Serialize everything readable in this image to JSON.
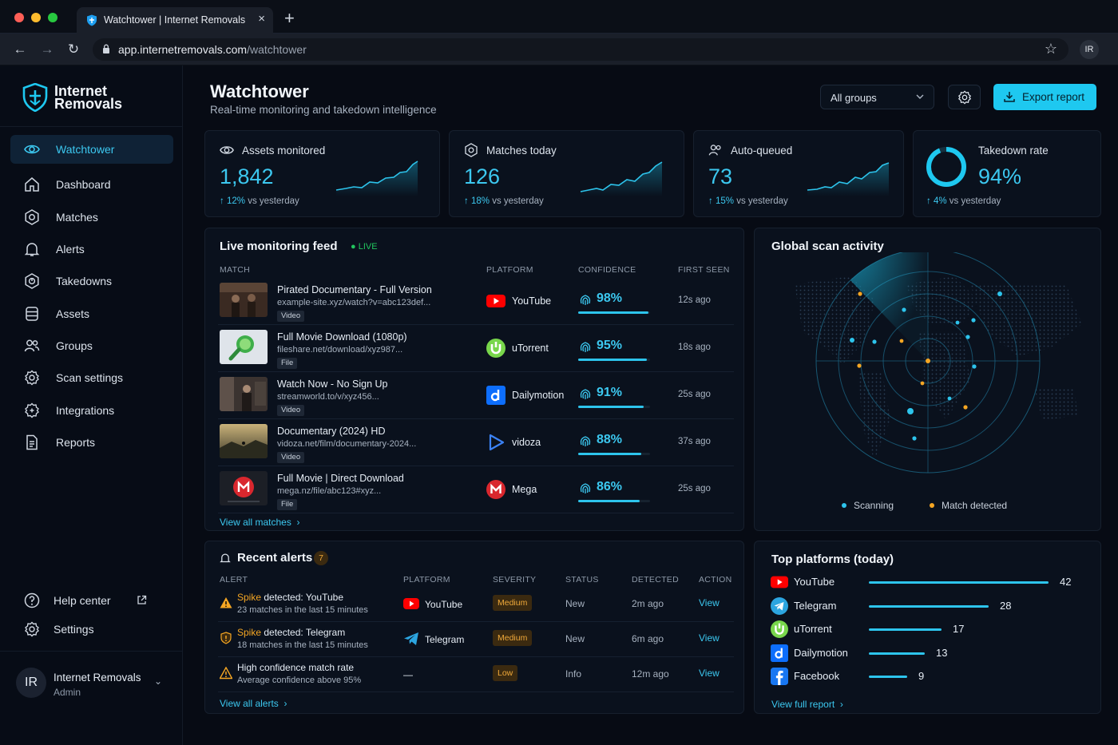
{
  "browser": {
    "tab_title": "Watchtower | Internet Removals",
    "url_host": "app.internetremovals.com",
    "url_path": "/watchtower",
    "profile_initials": "IR"
  },
  "brand": {
    "line1": "Internet",
    "line2": "Removals"
  },
  "sidebar": {
    "items": [
      {
        "label": "Watchtower",
        "icon": "eye-icon",
        "active": true
      },
      {
        "label": "Dashboard",
        "icon": "home-icon"
      },
      {
        "label": "Matches",
        "icon": "target-icon"
      },
      {
        "label": "Alerts",
        "icon": "bell-icon"
      },
      {
        "label": "Takedowns",
        "icon": "takedown-icon"
      },
      {
        "label": "Assets",
        "icon": "database-icon"
      },
      {
        "label": "Groups",
        "icon": "users-icon"
      },
      {
        "label": "Scan settings",
        "icon": "gear-icon"
      },
      {
        "label": "Integrations",
        "icon": "puzzle-icon"
      },
      {
        "label": "Reports",
        "icon": "document-icon"
      }
    ],
    "help": "Help center",
    "settings": "Settings",
    "user": {
      "initials": "IR",
      "name": "Internet Removals",
      "role": "Admin"
    }
  },
  "header": {
    "title": "Watchtower",
    "subtitle": "Real-time monitoring and takedown intelligence",
    "group_select": "All groups",
    "export_label": "Export report"
  },
  "kpis": [
    {
      "title": "Assets monitored",
      "value": "1,842",
      "delta": "12%",
      "delta_suffix": "vs yesterday",
      "icon": "eye-icon"
    },
    {
      "title": "Matches today",
      "value": "126",
      "delta": "18%",
      "delta_suffix": "vs yesterday",
      "icon": "target-icon"
    },
    {
      "title": "Auto-queued",
      "value": "73",
      "delta": "15%",
      "delta_suffix": "vs yesterday",
      "icon": "users-icon"
    },
    {
      "title": "Takedown rate",
      "value": "94%",
      "delta": "4%",
      "delta_suffix": "vs yesterday",
      "icon": "ring-icon",
      "rate": 0.94
    }
  ],
  "feed": {
    "title": "Live monitoring feed",
    "live": "LIVE",
    "columns": [
      "MATCH",
      "PLATFORM",
      "CONFIDENCE",
      "FIRST SEEN"
    ],
    "rows": [
      {
        "title": "Pirated Documentary - Full Version",
        "url": "example-site.xyz/watch?v=abc123def...",
        "tag": "Video",
        "platform": "YouTube",
        "confidence": "98%",
        "conf_value": 0.98,
        "seen": "12s ago"
      },
      {
        "title": "Full Movie Download (1080p)",
        "url": "fileshare.net/download/xyz987...",
        "tag": "File",
        "platform": "uTorrent",
        "confidence": "95%",
        "conf_value": 0.95,
        "seen": "18s ago"
      },
      {
        "title": "Watch Now - No Sign Up",
        "url": "streamworld.to/v/xyz456...",
        "tag": "Video",
        "platform": "Dailymotion",
        "confidence": "91%",
        "conf_value": 0.91,
        "seen": "25s ago"
      },
      {
        "title": "Documentary (2024) HD",
        "url": "vidoza.net/film/documentary-2024...",
        "tag": "Video",
        "platform": "vidoza",
        "confidence": "88%",
        "conf_value": 0.88,
        "seen": "37s ago"
      },
      {
        "title": "Full Movie | Direct Download",
        "url": "mega.nz/file/abc123#xyz...",
        "tag": "File",
        "platform": "Mega",
        "confidence": "86%",
        "conf_value": 0.86,
        "seen": "25s ago"
      }
    ],
    "view_all": "View all matches"
  },
  "scan": {
    "title": "Global scan activity",
    "legend_scanning": "Scanning",
    "legend_match": "Match detected"
  },
  "alerts": {
    "title": "Recent alerts",
    "count": "7",
    "columns": [
      "ALERT",
      "PLATFORM",
      "SEVERITY",
      "STATUS",
      "DETECTED",
      "ACTION"
    ],
    "rows": [
      {
        "highlight": "Spike",
        "title_rest": " detected: YouTube",
        "sub": "23 matches in the last 15 minutes",
        "platform": "YouTube",
        "severity": "Medium",
        "status": "New",
        "detected": "2m ago",
        "action": "View"
      },
      {
        "highlight": "Spike",
        "title_rest": " detected: Telegram",
        "sub": "18 matches in the last 15 minutes",
        "platform": "Telegram",
        "severity": "Medium",
        "status": "New",
        "detected": "6m ago",
        "action": "View"
      },
      {
        "highlight": "",
        "title_rest": "High confidence match rate",
        "sub": "Average confidence above 95%",
        "platform": "—",
        "severity": "Low",
        "status": "Info",
        "detected": "12m ago",
        "action": "View"
      }
    ],
    "view_all": "View all alerts"
  },
  "top_platforms": {
    "title": "Top platforms (today)",
    "rows": [
      {
        "name": "YouTube",
        "value": 42
      },
      {
        "name": "Telegram",
        "value": 28
      },
      {
        "name": "uTorrent",
        "value": 17
      },
      {
        "name": "Dailymotion",
        "value": 13
      },
      {
        "name": "Facebook",
        "value": 9
      }
    ],
    "view_full": "View full report"
  },
  "colors": {
    "accent": "#1ec8f0",
    "warning": "#f5a623",
    "bg": "#05080f",
    "card": "#0a111d"
  }
}
